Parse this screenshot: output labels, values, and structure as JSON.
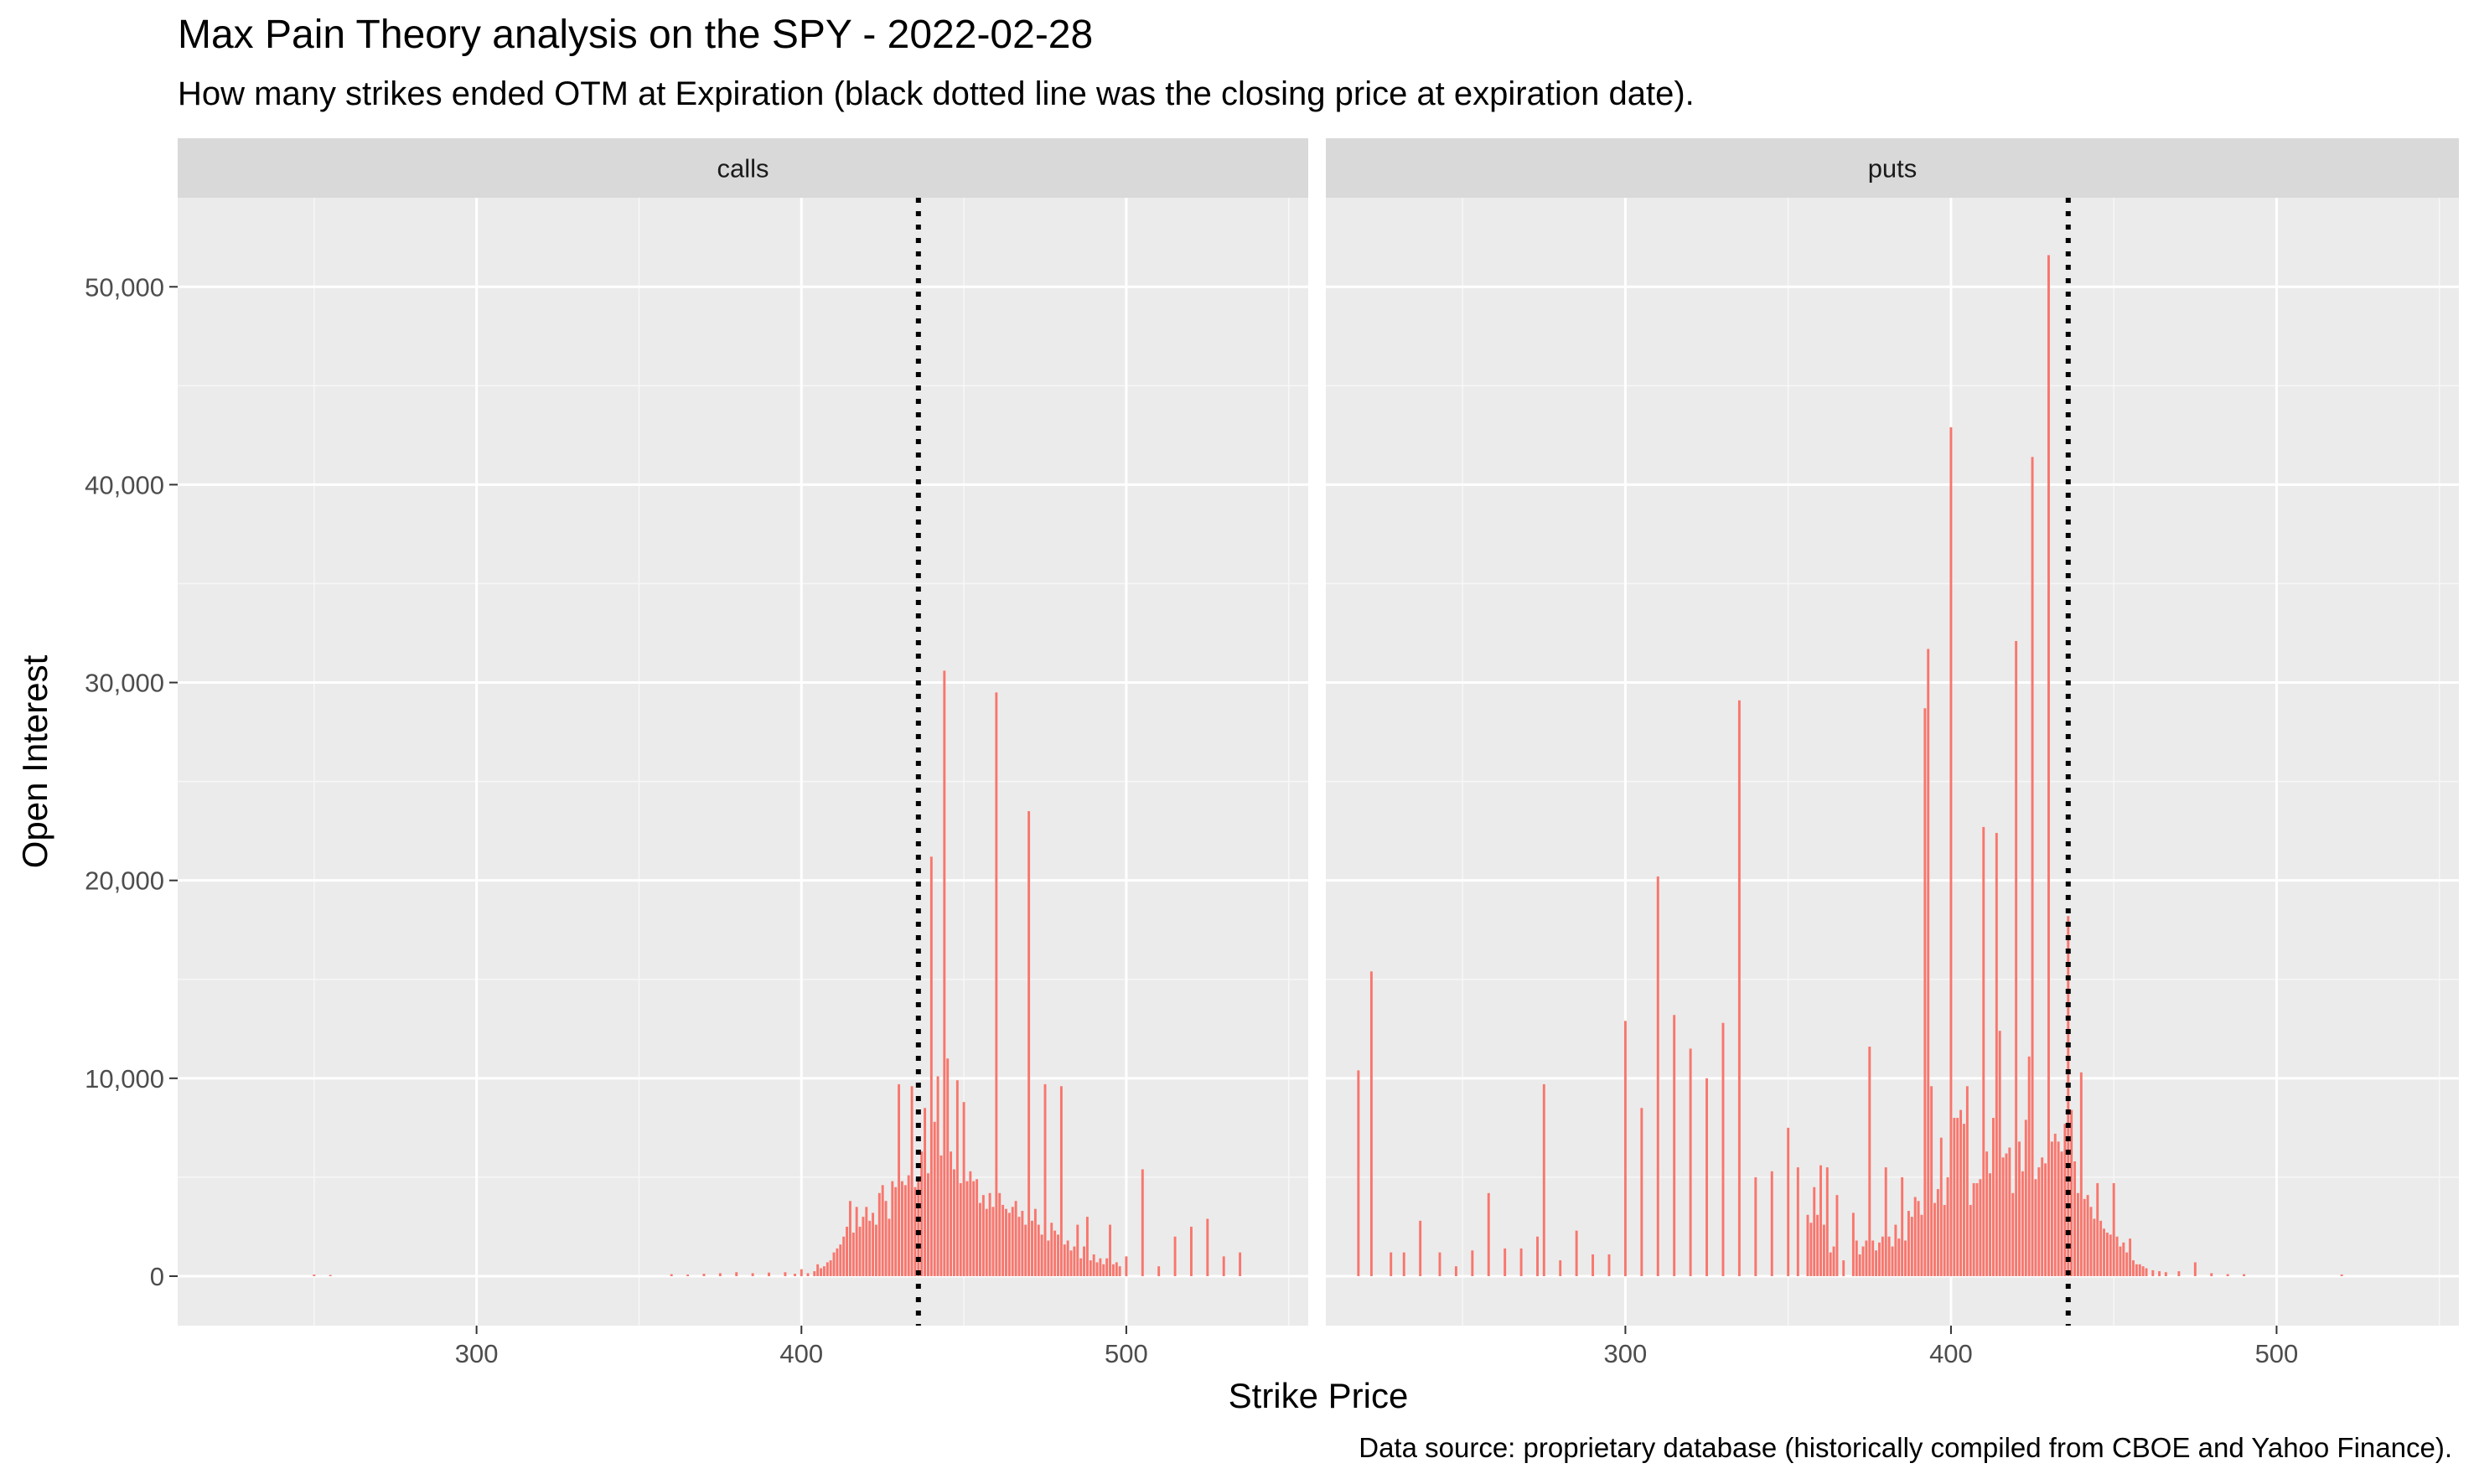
{
  "chart_data": {
    "type": "bar",
    "title": "Max Pain Theory analysis on the SPY - 2022-02-28",
    "subtitle": "How many strikes ended OTM at Expiration (black dotted line was the closing price at expiration date).",
    "caption": "Data source: proprietary database (historically compiled from CBOE and Yahoo Finance).",
    "xlabel": "Strike Price",
    "ylabel": "Open Interest",
    "xlim": [
      208,
      556
    ],
    "ylim": [
      -2500,
      54500
    ],
    "x_ticks": [
      300,
      400,
      500
    ],
    "x_tick_labels": [
      "300",
      "400",
      "500"
    ],
    "y_ticks": [
      0,
      10000,
      20000,
      30000,
      40000,
      50000
    ],
    "y_tick_labels": [
      "0",
      "10,000",
      "20,000",
      "30,000",
      "40,000",
      "50,000"
    ],
    "grid": true,
    "bar_color": "#F8766D",
    "closing_price": 436,
    "panels": [
      {
        "name": "calls",
        "bars": [
          [
            250,
            80
          ],
          [
            255,
            60
          ],
          [
            360,
            100
          ],
          [
            365,
            80
          ],
          [
            370,
            120
          ],
          [
            375,
            150
          ],
          [
            380,
            200
          ],
          [
            385,
            150
          ],
          [
            390,
            180
          ],
          [
            395,
            200
          ],
          [
            398,
            120
          ],
          [
            400,
            350
          ],
          [
            402,
            150
          ],
          [
            404,
            250
          ],
          [
            405,
            600
          ],
          [
            406,
            400
          ],
          [
            407,
            500
          ],
          [
            408,
            700
          ],
          [
            409,
            800
          ],
          [
            410,
            1200
          ],
          [
            411,
            1400
          ],
          [
            412,
            1600
          ],
          [
            413,
            2000
          ],
          [
            414,
            2500
          ],
          [
            415,
            3800
          ],
          [
            416,
            2200
          ],
          [
            417,
            3500
          ],
          [
            418,
            2500
          ],
          [
            419,
            3000
          ],
          [
            420,
            3500
          ],
          [
            421,
            2800
          ],
          [
            422,
            3200
          ],
          [
            423,
            2600
          ],
          [
            424,
            4200
          ],
          [
            425,
            4600
          ],
          [
            426,
            3800
          ],
          [
            427,
            2900
          ],
          [
            428,
            4800
          ],
          [
            429,
            4500
          ],
          [
            430,
            9700
          ],
          [
            431,
            4800
          ],
          [
            432,
            4600
          ],
          [
            433,
            5100
          ],
          [
            434,
            9600
          ],
          [
            435,
            4500
          ],
          [
            436,
            4800
          ],
          [
            437,
            6300
          ],
          [
            438,
            8500
          ],
          [
            439,
            5200
          ],
          [
            440,
            21200
          ],
          [
            441,
            7800
          ],
          [
            442,
            10100
          ],
          [
            443,
            6100
          ],
          [
            444,
            30600
          ],
          [
            445,
            11000
          ],
          [
            446,
            6300
          ],
          [
            447,
            5400
          ],
          [
            448,
            9900
          ],
          [
            449,
            4700
          ],
          [
            450,
            8800
          ],
          [
            451,
            4800
          ],
          [
            452,
            5300
          ],
          [
            453,
            4800
          ],
          [
            454,
            4900
          ],
          [
            455,
            3700
          ],
          [
            456,
            4100
          ],
          [
            457,
            3400
          ],
          [
            458,
            4200
          ],
          [
            459,
            3500
          ],
          [
            460,
            29500
          ],
          [
            461,
            4200
          ],
          [
            462,
            3600
          ],
          [
            463,
            3400
          ],
          [
            464,
            3200
          ],
          [
            465,
            3500
          ],
          [
            466,
            3800
          ],
          [
            467,
            3000
          ],
          [
            468,
            3300
          ],
          [
            469,
            2600
          ],
          [
            470,
            23500
          ],
          [
            471,
            2800
          ],
          [
            472,
            3400
          ],
          [
            473,
            2600
          ],
          [
            474,
            2100
          ],
          [
            475,
            9700
          ],
          [
            476,
            1800
          ],
          [
            477,
            2700
          ],
          [
            478,
            2300
          ],
          [
            479,
            2100
          ],
          [
            480,
            9600
          ],
          [
            481,
            1600
          ],
          [
            482,
            1800
          ],
          [
            483,
            1300
          ],
          [
            484,
            1500
          ],
          [
            485,
            2600
          ],
          [
            486,
            900
          ],
          [
            487,
            1500
          ],
          [
            488,
            3000
          ],
          [
            489,
            800
          ],
          [
            490,
            1100
          ],
          [
            491,
            700
          ],
          [
            492,
            900
          ],
          [
            493,
            600
          ],
          [
            494,
            900
          ],
          [
            495,
            2600
          ],
          [
            496,
            600
          ],
          [
            497,
            700
          ],
          [
            498,
            500
          ],
          [
            500,
            1000
          ],
          [
            505,
            5400
          ],
          [
            510,
            500
          ],
          [
            515,
            2000
          ],
          [
            520,
            2500
          ],
          [
            525,
            2900
          ],
          [
            530,
            1000
          ],
          [
            535,
            1200
          ]
        ]
      },
      {
        "name": "puts",
        "bars": [
          [
            218,
            10400
          ],
          [
            222,
            15400
          ],
          [
            228,
            1200
          ],
          [
            232,
            1200
          ],
          [
            237,
            2800
          ],
          [
            243,
            1200
          ],
          [
            248,
            500
          ],
          [
            253,
            1300
          ],
          [
            258,
            4200
          ],
          [
            263,
            1400
          ],
          [
            268,
            1400
          ],
          [
            273,
            2000
          ],
          [
            275,
            9700
          ],
          [
            280,
            800
          ],
          [
            285,
            2300
          ],
          [
            290,
            1100
          ],
          [
            295,
            1100
          ],
          [
            300,
            12900
          ],
          [
            305,
            8500
          ],
          [
            310,
            20200
          ],
          [
            315,
            13200
          ],
          [
            320,
            11500
          ],
          [
            325,
            10000
          ],
          [
            330,
            12800
          ],
          [
            335,
            29100
          ],
          [
            340,
            5000
          ],
          [
            345,
            5300
          ],
          [
            350,
            7500
          ],
          [
            353,
            5500
          ],
          [
            356,
            3100
          ],
          [
            357,
            2700
          ],
          [
            358,
            4500
          ],
          [
            359,
            3100
          ],
          [
            360,
            5600
          ],
          [
            361,
            2600
          ],
          [
            362,
            5500
          ],
          [
            363,
            1200
          ],
          [
            364,
            1500
          ],
          [
            365,
            4100
          ],
          [
            367,
            800
          ],
          [
            370,
            3200
          ],
          [
            371,
            1800
          ],
          [
            372,
            1100
          ],
          [
            373,
            1500
          ],
          [
            374,
            1800
          ],
          [
            375,
            11600
          ],
          [
            376,
            1800
          ],
          [
            377,
            1300
          ],
          [
            378,
            1700
          ],
          [
            379,
            2000
          ],
          [
            380,
            5500
          ],
          [
            381,
            2000
          ],
          [
            382,
            1500
          ],
          [
            383,
            2600
          ],
          [
            384,
            1900
          ],
          [
            385,
            5000
          ],
          [
            386,
            1800
          ],
          [
            387,
            3300
          ],
          [
            388,
            3000
          ],
          [
            389,
            4000
          ],
          [
            390,
            3800
          ],
          [
            391,
            3100
          ],
          [
            392,
            28700
          ],
          [
            393,
            31700
          ],
          [
            394,
            9600
          ],
          [
            395,
            3700
          ],
          [
            396,
            4400
          ],
          [
            397,
            7000
          ],
          [
            398,
            3600
          ],
          [
            399,
            5000
          ],
          [
            400,
            42900
          ],
          [
            401,
            8000
          ],
          [
            402,
            8000
          ],
          [
            403,
            8400
          ],
          [
            404,
            7700
          ],
          [
            405,
            9600
          ],
          [
            406,
            3600
          ],
          [
            407,
            4700
          ],
          [
            408,
            4700
          ],
          [
            409,
            4900
          ],
          [
            410,
            22700
          ],
          [
            411,
            6300
          ],
          [
            412,
            5200
          ],
          [
            413,
            8000
          ],
          [
            414,
            22400
          ],
          [
            415,
            12400
          ],
          [
            416,
            6000
          ],
          [
            417,
            6200
          ],
          [
            418,
            6500
          ],
          [
            419,
            4200
          ],
          [
            420,
            32100
          ],
          [
            421,
            6800
          ],
          [
            422,
            5300
          ],
          [
            423,
            7900
          ],
          [
            424,
            11100
          ],
          [
            425,
            41400
          ],
          [
            426,
            4900
          ],
          [
            427,
            5500
          ],
          [
            428,
            6000
          ],
          [
            429,
            5700
          ],
          [
            430,
            51600
          ],
          [
            431,
            6800
          ],
          [
            432,
            7200
          ],
          [
            433,
            6800
          ],
          [
            434,
            6300
          ],
          [
            435,
            7700
          ],
          [
            436,
            18200
          ],
          [
            437,
            8400
          ],
          [
            438,
            5800
          ],
          [
            439,
            4200
          ],
          [
            440,
            10300
          ],
          [
            441,
            3900
          ],
          [
            442,
            4100
          ],
          [
            443,
            3500
          ],
          [
            444,
            2900
          ],
          [
            445,
            4700
          ],
          [
            446,
            2800
          ],
          [
            447,
            2400
          ],
          [
            448,
            2200
          ],
          [
            449,
            2100
          ],
          [
            450,
            4700
          ],
          [
            451,
            2000
          ],
          [
            452,
            1500
          ],
          [
            453,
            1700
          ],
          [
            454,
            1200
          ],
          [
            455,
            1900
          ],
          [
            456,
            800
          ],
          [
            457,
            600
          ],
          [
            458,
            600
          ],
          [
            459,
            500
          ],
          [
            460,
            400
          ],
          [
            462,
            300
          ],
          [
            464,
            250
          ],
          [
            466,
            200
          ],
          [
            470,
            250
          ],
          [
            475,
            700
          ],
          [
            480,
            150
          ],
          [
            485,
            100
          ],
          [
            490,
            100
          ],
          [
            520,
            80
          ]
        ]
      }
    ]
  }
}
